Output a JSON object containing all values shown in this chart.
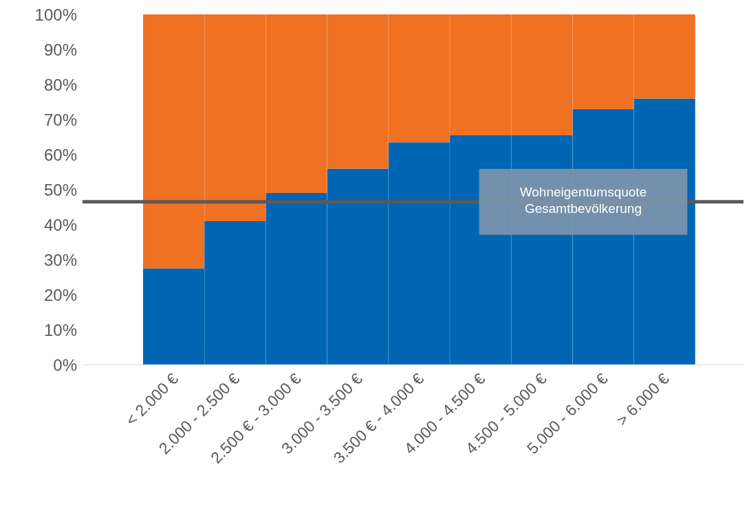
{
  "chart_data": {
    "type": "bar",
    "stacked": true,
    "categories": [
      "< 2.000 €",
      "2.000 - 2.500 €",
      "2.500 € - 3.000 €",
      "3.000 - 3.500 €",
      "3.500 € - 4.000 €",
      "4.000 - 4.500 €",
      "4.500 - 5.000 €",
      "5.000 - 6.000 €",
      "> 6.000 €"
    ],
    "series": [
      {
        "color": "#0066b3",
        "values": [
          27.5,
          41,
          49,
          56,
          63.5,
          65.5,
          65.5,
          73,
          76
        ]
      },
      {
        "color": "#f07122",
        "values": [
          72.5,
          59,
          51,
          44,
          36.5,
          34.5,
          34.5,
          27,
          24
        ]
      }
    ],
    "ylim": [
      0,
      100
    ],
    "yticks": [
      {
        "value": 0,
        "label": "0%"
      },
      {
        "value": 10,
        "label": "10%"
      },
      {
        "value": 20,
        "label": "20%"
      },
      {
        "value": 30,
        "label": "30%"
      },
      {
        "value": 40,
        "label": "40%"
      },
      {
        "value": 50,
        "label": "50%"
      },
      {
        "value": 60,
        "label": "60%"
      },
      {
        "value": 70,
        "label": "70%"
      },
      {
        "value": 80,
        "label": "80%"
      },
      {
        "value": 90,
        "label": "90%"
      },
      {
        "value": 100,
        "label": "100%"
      }
    ],
    "ref_lines": [
      {
        "axis": "y",
        "value": 46.5,
        "label": "Wohneigentumsquote Gesamtbevölkerung",
        "color": "#595959"
      }
    ],
    "grid": false,
    "legend": false
  }
}
